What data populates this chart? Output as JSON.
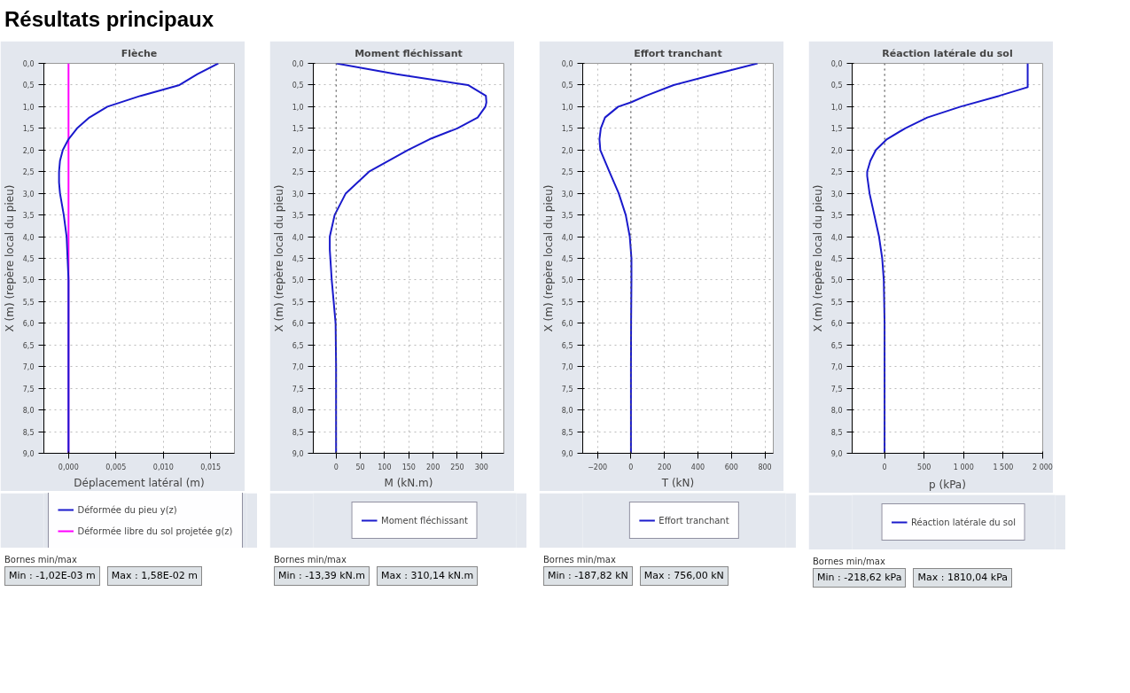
{
  "chart_data": [
    {
      "type": "line",
      "orientation": "horizontal",
      "title": "Flèche",
      "xlabel": "Déplacement latéral (m)",
      "ylabel": "X (m) (repère local du pieu)",
      "grid": true,
      "legend": "bottom",
      "xlim": [
        -0.0026,
        0.0175
      ],
      "xticks": [
        {
          "value": 0,
          "label": "0,000"
        },
        {
          "value": 0.005,
          "label": "0,005"
        },
        {
          "value": 0.01,
          "label": "0,010"
        },
        {
          "value": 0.015,
          "label": "0,015"
        }
      ],
      "ylim": [
        9,
        0
      ],
      "yticks": [
        {
          "value": 0,
          "label": "0,0"
        },
        {
          "value": 0.5,
          "label": "0,5"
        },
        {
          "value": 1,
          "label": "1,0"
        },
        {
          "value": 1.5,
          "label": "1,5"
        },
        {
          "value": 2,
          "label": "2,0"
        },
        {
          "value": 2.5,
          "label": "2,5"
        },
        {
          "value": 3,
          "label": "3,0"
        },
        {
          "value": 3.5,
          "label": "3,5"
        },
        {
          "value": 4,
          "label": "4,0"
        },
        {
          "value": 4.5,
          "label": "4,5"
        },
        {
          "value": 5,
          "label": "5,0"
        },
        {
          "value": 5.5,
          "label": "5,5"
        },
        {
          "value": 6,
          "label": "6,0"
        },
        {
          "value": 6.5,
          "label": "6,5"
        },
        {
          "value": 7,
          "label": "7,0"
        },
        {
          "value": 7.5,
          "label": "7,5"
        },
        {
          "value": 8,
          "label": "8,0"
        },
        {
          "value": 8.5,
          "label": "8,5"
        },
        {
          "value": 9,
          "label": "9,0"
        }
      ],
      "series": [
        {
          "name": "Déformée du pieu y(z)",
          "color": "#1a1acc",
          "x": [
            0,
            0.25,
            0.5,
            0.75,
            1.0,
            1.25,
            1.5,
            1.75,
            2.0,
            2.25,
            2.5,
            2.75,
            3.0,
            3.5,
            4.0,
            4.5,
            5.0,
            6.0,
            7.0,
            8.0,
            9.0
          ],
          "values": [
            0.0158,
            0.0136,
            0.0117,
            0.0076,
            0.0041,
            0.0022,
            0.0009,
            0.0,
            -0.0006,
            -0.0009,
            -0.001,
            -0.001,
            -0.0009,
            -0.0005,
            -0.0002,
            -0.0001,
            0,
            0,
            0,
            0,
            0
          ]
        },
        {
          "name": "Déformée libre du sol projetée g(z)",
          "color": "#ff00ff",
          "x": [
            0,
            9
          ],
          "values": [
            0,
            0
          ]
        }
      ],
      "annotations": [
        "Résultats principaux",
        "Bornes min/max",
        "Min : -1,02E-03 m",
        "Max : 1,58E-02 m"
      ]
    },
    {
      "type": "line",
      "orientation": "horizontal",
      "title": "Moment fléchissant",
      "xlabel": "M (kN.m)",
      "ylabel": "X (m) (repère local du pieu)",
      "grid": true,
      "legend": "bottom",
      "xlim": [
        -47,
        346
      ],
      "xticks": [
        0,
        50,
        100,
        150,
        200,
        250,
        300
      ],
      "ylim": [
        9,
        0
      ],
      "yticks": [
        {
          "value": 0,
          "label": "0,0"
        },
        {
          "value": 0.5,
          "label": "0,5"
        },
        {
          "value": 1,
          "label": "1,0"
        },
        {
          "value": 1.5,
          "label": "1,5"
        },
        {
          "value": 2,
          "label": "2,0"
        },
        {
          "value": 2.5,
          "label": "2,5"
        },
        {
          "value": 3,
          "label": "3,0"
        },
        {
          "value": 3.5,
          "label": "3,5"
        },
        {
          "value": 4,
          "label": "4,0"
        },
        {
          "value": 4.5,
          "label": "4,5"
        },
        {
          "value": 5,
          "label": "5,0"
        },
        {
          "value": 5.5,
          "label": "5,5"
        },
        {
          "value": 6,
          "label": "6,0"
        },
        {
          "value": 6.5,
          "label": "6,5"
        },
        {
          "value": 7,
          "label": "7,0"
        },
        {
          "value": 7.5,
          "label": "7,5"
        },
        {
          "value": 8,
          "label": "8,0"
        },
        {
          "value": 8.5,
          "label": "8,5"
        },
        {
          "value": 9,
          "label": "9,0"
        }
      ],
      "ref_lines": [
        {
          "axis": "x",
          "value": 0,
          "line_style": "dotted",
          "color": "#555555"
        }
      ],
      "series": [
        {
          "name": "Moment fléchissant",
          "color": "#1a1acc",
          "x": [
            0,
            0.25,
            0.5,
            0.75,
            0.9,
            1.0,
            1.25,
            1.5,
            1.75,
            2.0,
            2.5,
            3.0,
            3.5,
            4.0,
            4.3,
            5.0,
            5.5,
            6.0,
            7.0,
            8.0,
            9.0
          ],
          "values": [
            0,
            125,
            272,
            309,
            310,
            308,
            292,
            250,
            193,
            148,
            68,
            20,
            -3,
            -13,
            -13,
            -9,
            -5,
            -1,
            0,
            0,
            0
          ]
        }
      ],
      "annotations": [
        "Bornes min/max",
        "Min : -13,39 kN.m",
        "Max : 310,14 kN.m"
      ]
    },
    {
      "type": "line",
      "orientation": "horizontal",
      "title": "Effort tranchant",
      "xlabel": "T (kN)",
      "ylabel": "X (m) (repère local du pieu)",
      "grid": true,
      "legend": "bottom",
      "xlim": [
        -288,
        850
      ],
      "xticks": [
        -200,
        0,
        200,
        400,
        600,
        800
      ],
      "ylim": [
        9,
        0
      ],
      "yticks": [
        {
          "value": 0,
          "label": "0,0"
        },
        {
          "value": 0.5,
          "label": "0,5"
        },
        {
          "value": 1,
          "label": "1,0"
        },
        {
          "value": 1.5,
          "label": "1,5"
        },
        {
          "value": 2,
          "label": "2,0"
        },
        {
          "value": 2.5,
          "label": "2,5"
        },
        {
          "value": 3,
          "label": "3,0"
        },
        {
          "value": 3.5,
          "label": "3,5"
        },
        {
          "value": 4,
          "label": "4,0"
        },
        {
          "value": 4.5,
          "label": "4,5"
        },
        {
          "value": 5,
          "label": "5,0"
        },
        {
          "value": 5.5,
          "label": "5,5"
        },
        {
          "value": 6,
          "label": "6,0"
        },
        {
          "value": 6.5,
          "label": "6,5"
        },
        {
          "value": 7,
          "label": "7,0"
        },
        {
          "value": 7.5,
          "label": "7,5"
        },
        {
          "value": 8,
          "label": "8,0"
        },
        {
          "value": 8.5,
          "label": "8,5"
        },
        {
          "value": 9,
          "label": "9,0"
        }
      ],
      "ref_lines": [
        {
          "axis": "x",
          "value": 0,
          "line_style": "dotted",
          "color": "#555555"
        }
      ],
      "series": [
        {
          "name": "Effort tranchant",
          "color": "#1a1acc",
          "x": [
            0,
            0.25,
            0.5,
            0.75,
            0.9,
            1.0,
            1.25,
            1.5,
            1.75,
            2.0,
            2.5,
            3.0,
            3.5,
            4.0,
            4.5,
            5.0,
            6.0,
            7.0,
            8.0,
            9.0
          ],
          "values": [
            756,
            502,
            255,
            89,
            0,
            -76,
            -155,
            -180,
            -188,
            -183,
            -129,
            -73,
            -31,
            -7,
            3,
            3,
            1,
            0,
            0,
            0
          ]
        }
      ],
      "annotations": [
        "Bornes min/max",
        "Min : -187,82 kN",
        "Max : 756,00 kN"
      ]
    },
    {
      "type": "line",
      "orientation": "horizontal",
      "title": "Réaction latérale du sol",
      "xlabel": "p (kPa)",
      "ylabel": "X (m) (repère local du pieu)",
      "grid": true,
      "legend": "bottom",
      "xlim": [
        -410,
        2000
      ],
      "xticks": [
        0,
        500,
        {
          "value": 1000,
          "label": "1 000"
        },
        {
          "value": 1500,
          "label": "1 500"
        },
        {
          "value": 2000,
          "label": "2 000"
        }
      ],
      "ylim": [
        9,
        0
      ],
      "yticks": [
        {
          "value": 0,
          "label": "0,0"
        },
        {
          "value": 0.5,
          "label": "0,5"
        },
        {
          "value": 1,
          "label": "1,0"
        },
        {
          "value": 1.5,
          "label": "1,5"
        },
        {
          "value": 2,
          "label": "2,0"
        },
        {
          "value": 2.5,
          "label": "2,5"
        },
        {
          "value": 3,
          "label": "3,0"
        },
        {
          "value": 3.5,
          "label": "3,5"
        },
        {
          "value": 4,
          "label": "4,0"
        },
        {
          "value": 4.5,
          "label": "4,5"
        },
        {
          "value": 5,
          "label": "5,0"
        },
        {
          "value": 5.5,
          "label": "5,5"
        },
        {
          "value": 6,
          "label": "6,0"
        },
        {
          "value": 6.5,
          "label": "6,5"
        },
        {
          "value": 7,
          "label": "7,0"
        },
        {
          "value": 7.5,
          "label": "7,5"
        },
        {
          "value": 8,
          "label": "8,0"
        },
        {
          "value": 8.5,
          "label": "8,5"
        },
        {
          "value": 9,
          "label": "9,0"
        }
      ],
      "ref_lines": [
        {
          "axis": "x",
          "value": 0,
          "line_style": "dotted",
          "color": "#555555"
        }
      ],
      "series": [
        {
          "name": "Réaction latérale du sol",
          "color": "#1a1acc",
          "x": [
            0,
            0.55,
            0.75,
            1.0,
            1.25,
            1.5,
            1.75,
            2.0,
            2.25,
            2.5,
            2.6,
            3.0,
            3.5,
            4.0,
            4.5,
            5.0,
            6.0,
            7.0,
            8.0,
            9.0
          ],
          "values": [
            1810,
            1810,
            1450,
            960,
            540,
            260,
            30,
            -110,
            -180,
            -220,
            -220,
            -190,
            -130,
            -70,
            -30,
            -10,
            0,
            0,
            0,
            0
          ]
        }
      ],
      "annotations": [
        "Bornes min/max",
        "Min : -218,62 kPa",
        "Max : 1810,04 kPa"
      ]
    }
  ]
}
